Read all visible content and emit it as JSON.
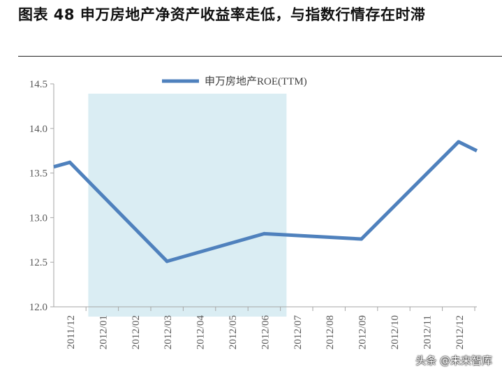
{
  "figure": {
    "title": "图表 48 申万房地产净资产收益率走低，与指数行情存在时滞",
    "watermark": "头条 @未来智库"
  },
  "chart_data": {
    "type": "line",
    "categories": [
      "2011/12",
      "2012/01",
      "2012/02",
      "2012/03",
      "2012/04",
      "2012/05",
      "2012/06",
      "2012/07",
      "2012/08",
      "2012/09",
      "2012/10",
      "2012/11",
      "2012/12"
    ],
    "series": [
      {
        "name": "申万房地产ROE(TTM)",
        "color": "#4f81bd",
        "values": [
          13.62,
          null,
          null,
          12.51,
          null,
          null,
          12.82,
          null,
          null,
          12.76,
          null,
          null,
          13.85
        ]
      }
    ],
    "start_value": 13.57,
    "end_value": 13.75,
    "ylim": [
      12.0,
      14.5
    ],
    "yticks": [
      "12.0",
      "12.5",
      "13.0",
      "13.5",
      "14.0",
      "14.5"
    ],
    "shaded_region": {
      "from": "2012/01",
      "to": "2012/06",
      "color": "#daedf3"
    },
    "legend_position": "top-center",
    "grid": false,
    "xlabel": "",
    "ylabel": ""
  }
}
